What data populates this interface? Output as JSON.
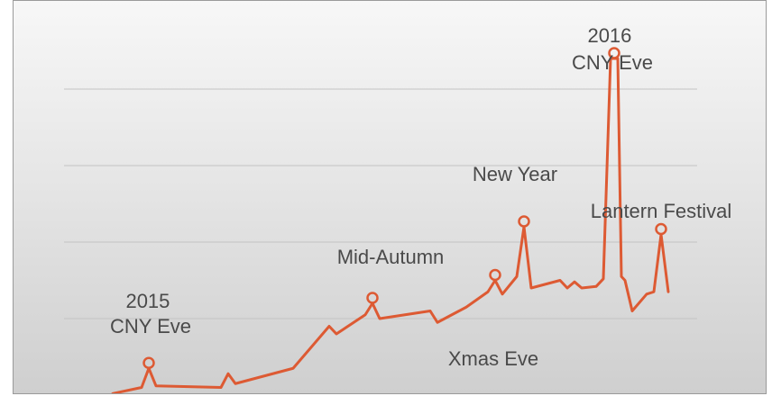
{
  "chart_data": {
    "type": "line",
    "title": "",
    "xlabel": "",
    "ylabel": "",
    "ylim": [
      0,
      4
    ],
    "grid": "horizontal",
    "color": "#dd5a33",
    "series": [
      {
        "values": [
          [
            0,
            0.02
          ],
          [
            4,
            0.1
          ],
          [
            5,
            0.35
          ],
          [
            6,
            0.12
          ],
          [
            15,
            0.1
          ],
          [
            16,
            0.28
          ],
          [
            17,
            0.15
          ],
          [
            25,
            0.35
          ],
          [
            30,
            0.9
          ],
          [
            31,
            0.8
          ],
          [
            35,
            1.05
          ],
          [
            36,
            1.2
          ],
          [
            37,
            1.0
          ],
          [
            44,
            1.1
          ],
          [
            45,
            0.95
          ],
          [
            49,
            1.15
          ],
          [
            52,
            1.35
          ],
          [
            53,
            1.5
          ],
          [
            54,
            1.32
          ],
          [
            56,
            1.55
          ],
          [
            57,
            2.2
          ],
          [
            58,
            1.4
          ],
          [
            62,
            1.5
          ],
          [
            63,
            1.4
          ],
          [
            64,
            1.48
          ],
          [
            65,
            1.4
          ],
          [
            67,
            1.42
          ],
          [
            68,
            1.52
          ],
          [
            69,
            4.4
          ],
          [
            70,
            4.4
          ],
          [
            70.5,
            1.55
          ],
          [
            71,
            1.5
          ],
          [
            72,
            1.1
          ],
          [
            74,
            1.32
          ],
          [
            75,
            1.35
          ],
          [
            76,
            2.1
          ],
          [
            77,
            1.35
          ]
        ]
      }
    ],
    "annotations": [
      {
        "text_lines": [
          "2015",
          "CNY Eve"
        ],
        "x": 5,
        "y": 0.35
      },
      {
        "text_lines": [
          "Mid-Autumn"
        ],
        "x": 36,
        "y": 1.2
      },
      {
        "text_lines": [
          "Xmas Eve"
        ],
        "x": 53,
        "y": 1.5
      },
      {
        "text_lines": [
          "New Year"
        ],
        "x": 57,
        "y": 2.2
      },
      {
        "text_lines": [
          "2016",
          "CNY Eve"
        ],
        "x": 69.5,
        "y": 4.4
      },
      {
        "text_lines": [
          "Lantern Festival"
        ],
        "x": 76,
        "y": 2.1
      }
    ]
  }
}
